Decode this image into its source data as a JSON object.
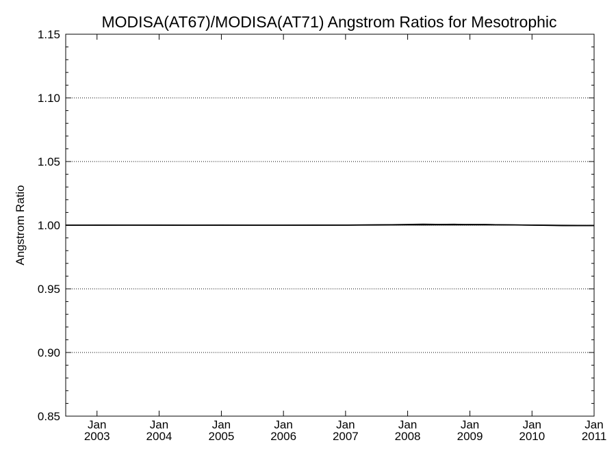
{
  "chart_data": {
    "type": "line",
    "title": "MODISA(AT67)/MODISA(AT71)  Angstrom Ratios for Mesotrophic",
    "xlabel": "",
    "ylabel": "Angstrom Ratio",
    "ylim": [
      0.85,
      1.15
    ],
    "y_ticks": [
      "0.85",
      "0.90",
      "0.95",
      "1.00",
      "1.05",
      "1.10",
      "1.15"
    ],
    "y_tick_values": [
      0.85,
      0.9,
      0.95,
      1.0,
      1.05,
      1.1,
      1.15
    ],
    "xlim": [
      "2002-07-01",
      "2011-01-01"
    ],
    "x_ticks": [
      {
        "month": "Jan",
        "year": "2003",
        "date": "2003-01-01"
      },
      {
        "month": "Jan",
        "year": "2004",
        "date": "2004-01-01"
      },
      {
        "month": "Jan",
        "year": "2005",
        "date": "2005-01-01"
      },
      {
        "month": "Jan",
        "year": "2006",
        "date": "2006-01-01"
      },
      {
        "month": "Jan",
        "year": "2007",
        "date": "2007-01-01"
      },
      {
        "month": "Jan",
        "year": "2008",
        "date": "2008-01-01"
      },
      {
        "month": "Jan",
        "year": "2009",
        "date": "2009-01-01"
      },
      {
        "month": "Jan",
        "year": "2010",
        "date": "2010-01-01"
      },
      {
        "month": "Jan",
        "year": "2011",
        "date": "2011-01-01"
      }
    ],
    "grid": "dotted horizontal at major y ticks",
    "series": [
      {
        "color": "#000000",
        "x": [
          "2002-07-01",
          "2003-01-01",
          "2003-07-01",
          "2004-01-01",
          "2004-07-01",
          "2005-01-01",
          "2005-07-01",
          "2006-01-01",
          "2006-07-01",
          "2007-01-01",
          "2007-07-01",
          "2008-01-01",
          "2008-04-01",
          "2008-07-01",
          "2008-10-01",
          "2009-01-01",
          "2009-04-01",
          "2009-07-01",
          "2010-01-01",
          "2010-07-01",
          "2011-01-01"
        ],
        "values": [
          1.0,
          1.0001,
          1.0001,
          1.0001,
          1.0,
          1.0,
          1.0,
          1.0,
          1.0,
          1.0001,
          1.0002,
          1.0006,
          1.0008,
          1.0006,
          1.0007,
          1.0004,
          1.0005,
          1.0003,
          1.0,
          0.9996,
          0.9996
        ]
      },
      {
        "color": "#000000",
        "x": [
          "2002-07-01",
          "2003-01-01",
          "2003-07-01",
          "2004-01-01",
          "2004-07-01",
          "2005-01-01",
          "2005-07-01",
          "2006-01-01",
          "2006-07-01",
          "2007-01-01",
          "2007-07-01",
          "2008-01-01",
          "2008-04-01",
          "2008-07-01",
          "2008-10-01",
          "2009-01-01",
          "2009-04-01",
          "2009-07-01",
          "2010-01-01",
          "2010-07-01",
          "2011-01-01"
        ],
        "values": [
          1.0,
          1.0,
          1.0001,
          1.0,
          1.0,
          1.0001,
          1.0,
          1.0,
          1.0001,
          1.0001,
          1.0003,
          1.0004,
          1.0003,
          1.0005,
          1.0004,
          1.0006,
          1.0005,
          1.0003,
          1.0001,
          0.9998,
          0.9997
        ]
      },
      {
        "color": "#000000",
        "x": [
          "2002-07-01",
          "2003-01-01",
          "2003-07-01",
          "2004-01-01",
          "2004-07-01",
          "2005-01-01",
          "2005-07-01",
          "2006-01-01",
          "2006-07-01",
          "2007-01-01",
          "2007-07-01",
          "2008-01-01",
          "2008-04-01",
          "2008-07-01",
          "2008-10-01",
          "2009-01-01",
          "2009-04-01",
          "2009-07-01",
          "2010-01-01",
          "2010-07-01",
          "2011-01-01"
        ],
        "values": [
          1.0,
          1.0,
          1.0,
          1.0,
          1.0,
          1.0,
          1.0,
          1.0,
          1.0,
          1.0,
          1.0001,
          1.0002,
          1.0002,
          1.0002,
          1.0002,
          1.0002,
          1.0002,
          1.0002,
          1.0001,
          0.9999,
          0.9998
        ]
      }
    ]
  }
}
